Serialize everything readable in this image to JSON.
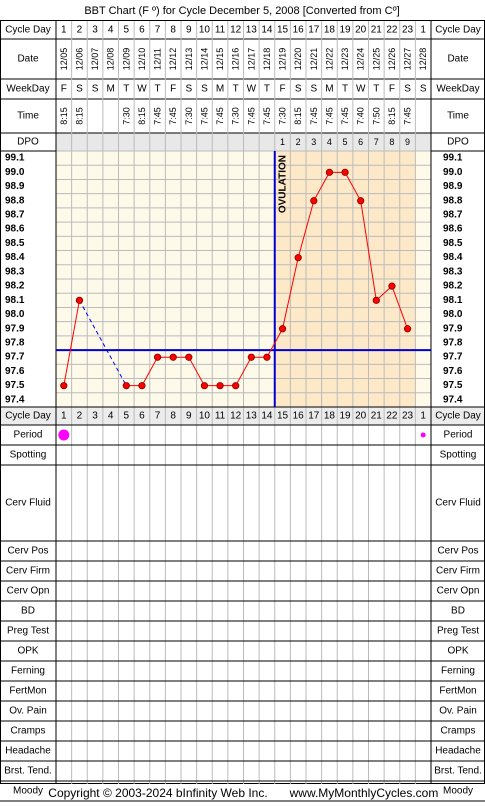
{
  "title": "BBT Chart (F º) for Cycle December 5, 2008  [Converted from Cº]",
  "footer": {
    "copyright": "Copyright © 2003-2024 bInfinity Web Inc.",
    "site": "www.MyMonthlyCycles.com"
  },
  "row_labels": {
    "cycle_day": "Cycle Day",
    "date": "Date",
    "weekday": "WeekDay",
    "time": "Time",
    "dpo": "DPO"
  },
  "columns": {
    "cycle_days": [
      "1",
      "2",
      "3",
      "4",
      "5",
      "6",
      "7",
      "8",
      "9",
      "10",
      "11",
      "12",
      "13",
      "14",
      "15",
      "16",
      "17",
      "18",
      "19",
      "20",
      "21",
      "22",
      "23",
      "1"
    ],
    "dates": [
      "12/05",
      "12/06",
      "12/07",
      "12/08",
      "12/09",
      "12/10",
      "12/11",
      "12/12",
      "12/13",
      "12/14",
      "12/15",
      "12/16",
      "12/17",
      "12/18",
      "12/19",
      "12/20",
      "12/21",
      "12/22",
      "12/23",
      "12/24",
      "12/25",
      "12/26",
      "12/27",
      "12/28"
    ],
    "weekdays": [
      "F",
      "S",
      "S",
      "M",
      "T",
      "W",
      "T",
      "F",
      "S",
      "S",
      "M",
      "T",
      "W",
      "T",
      "F",
      "S",
      "S",
      "M",
      "T",
      "W",
      "T",
      "F",
      "S",
      "S"
    ],
    "times": [
      "8:15",
      "8:15",
      "",
      "",
      "7:30",
      "8:15",
      "7:45",
      "7:45",
      "7:30",
      "7:45",
      "7:45",
      "7:30",
      "7:45",
      "7:45",
      "7:30",
      "8:15",
      "7:45",
      "7:45",
      "7:45",
      "7:40",
      "7:50",
      "8:15",
      "7:45",
      ""
    ],
    "dpo": [
      "",
      "",
      "",
      "",
      "",
      "",
      "",
      "",
      "",
      "",
      "",
      "",
      "",
      "",
      "1",
      "2",
      "3",
      "4",
      "5",
      "6",
      "7",
      "8",
      "9",
      ""
    ]
  },
  "chart_data": {
    "type": "line",
    "x": [
      1,
      2,
      3,
      4,
      5,
      6,
      7,
      8,
      9,
      10,
      11,
      12,
      13,
      14,
      15,
      16,
      17,
      18,
      19,
      20,
      21,
      22,
      23,
      24
    ],
    "series": [
      {
        "values": [
          97.5,
          98.1,
          null,
          null,
          97.5,
          97.5,
          97.7,
          97.7,
          97.7,
          97.5,
          97.5,
          97.5,
          97.7,
          97.7,
          97.9,
          98.4,
          98.8,
          99.0,
          99.0,
          98.8,
          98.1,
          98.2,
          97.9,
          null
        ]
      }
    ],
    "gap_links": [
      [
        2,
        5
      ]
    ],
    "y_ticks": [
      "99.1",
      "99.0",
      "98.9",
      "98.8",
      "98.7",
      "98.6",
      "98.5",
      "98.4",
      "98.3",
      "98.2",
      "98.1",
      "98.0",
      "97.9",
      "97.8",
      "97.7",
      "97.6",
      "97.5",
      "97.4"
    ],
    "ylim": [
      97.4,
      99.1
    ],
    "coverline": 97.8,
    "ovulation_day": 14,
    "ovulation_label": "OVULATION",
    "luteal_days": [
      15,
      23
    ],
    "point_color": "#ff0000",
    "line_color": "#ff0000",
    "gap_color": "#0000ff",
    "coverline_color": "#0000cc",
    "follicular_bg": "#fdfaea",
    "luteal_bg": "#fde8c8",
    "grid_color": "#bbbbbb"
  },
  "bottom_rows": [
    {
      "label": "Cycle Day",
      "key": "cycle_day"
    },
    {
      "label": "Period",
      "key": "period",
      "marks": [
        {
          "day": 1,
          "size": "large"
        },
        {
          "day": 24,
          "size": "small"
        }
      ],
      "mark_color": "#ff00ff"
    },
    {
      "label": "Spotting",
      "key": "spotting"
    },
    {
      "label": "Cerv Fluid",
      "key": "cerv_fluid"
    },
    {
      "label": "Cerv Pos",
      "key": "cerv_pos"
    },
    {
      "label": "Cerv Firm",
      "key": "cerv_firm"
    },
    {
      "label": "Cerv Opn",
      "key": "cerv_opn"
    },
    {
      "label": "BD",
      "key": "bd"
    },
    {
      "label": "Preg Test",
      "key": "preg_test"
    },
    {
      "label": "OPK",
      "key": "opk"
    },
    {
      "label": "Ferning",
      "key": "ferning"
    },
    {
      "label": "FertMon",
      "key": "fertmon"
    },
    {
      "label": "Ov. Pain",
      "key": "ov_pain"
    },
    {
      "label": "Cramps",
      "key": "cramps"
    },
    {
      "label": "Headache",
      "key": "headache"
    },
    {
      "label": "Brst. Tend.",
      "key": "brst_tend"
    },
    {
      "label": "Moody",
      "key": "moody"
    }
  ]
}
